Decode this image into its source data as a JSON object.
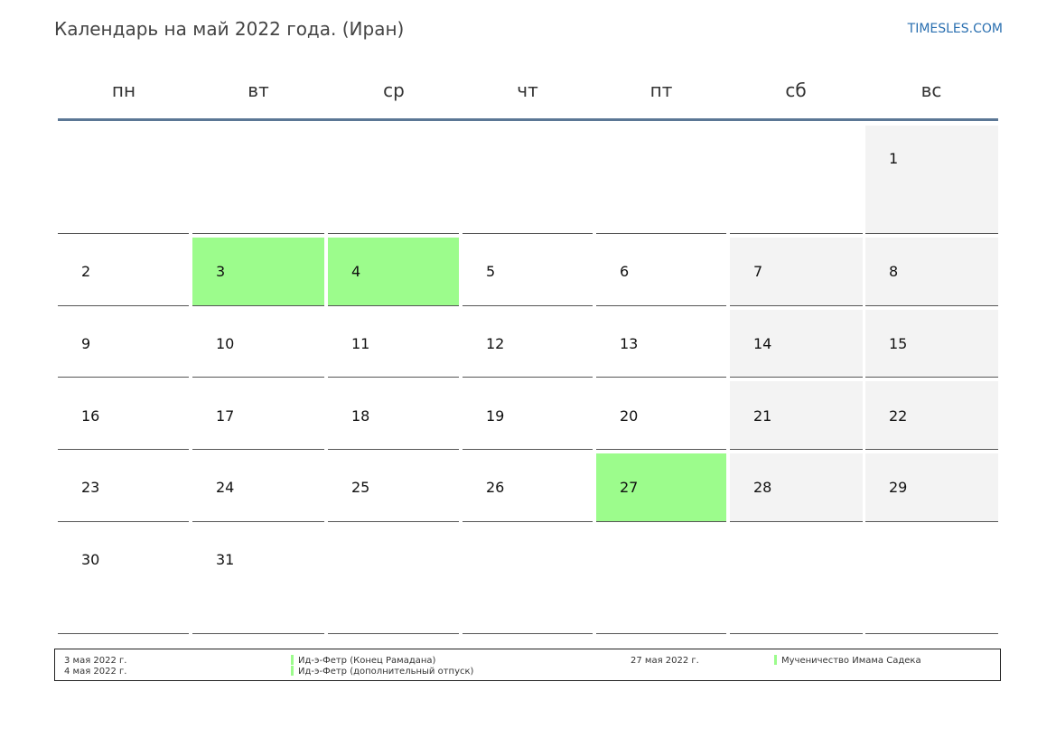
{
  "header": {
    "title": "Календарь на май 2022 года. (Иран)",
    "brand": "TIMESLES.COM"
  },
  "weekdays": [
    "пн",
    "вт",
    "ср",
    "чт",
    "пт",
    "сб",
    "вс"
  ],
  "calendar": {
    "weeks": [
      [
        null,
        null,
        null,
        null,
        null,
        null,
        1
      ],
      [
        2,
        3,
        4,
        5,
        6,
        7,
        8
      ],
      [
        9,
        10,
        11,
        12,
        13,
        14,
        15
      ],
      [
        16,
        17,
        18,
        19,
        20,
        21,
        22
      ],
      [
        23,
        24,
        25,
        26,
        27,
        28,
        29
      ],
      [
        30,
        31,
        null,
        null,
        null,
        null,
        null
      ]
    ],
    "holidays": [
      3,
      4,
      27
    ],
    "colors": {
      "holiday": "#9cfc8c",
      "weekend": "#f3f3f3",
      "header_line": "#5b7795"
    }
  },
  "legend": {
    "left": [
      {
        "date": "3 мая 2022 г.",
        "name": "Ид-э-Фетр (Конец Рамадана)"
      },
      {
        "date": "4 мая 2022 г.",
        "name": "Ид-э-Фетр (дополнительный отпуск)"
      }
    ],
    "right": [
      {
        "date": "27 мая 2022 г.",
        "name": "Мученичество Имама Садека"
      }
    ]
  }
}
